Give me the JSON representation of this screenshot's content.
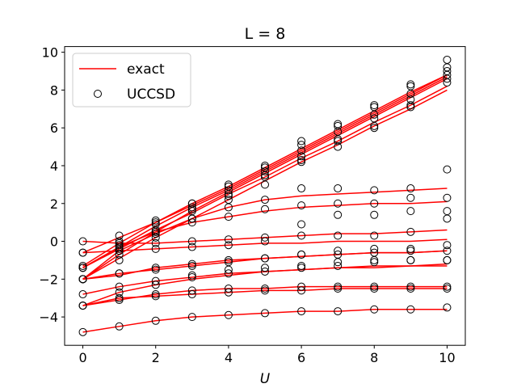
{
  "chart_data": {
    "type": "line",
    "title": "L = 8",
    "xlabel": "U",
    "ylabel": "",
    "xlim": [
      -0.5,
      10.5
    ],
    "ylim": [
      -5.5,
      10.3
    ],
    "xticks": [
      0,
      2,
      4,
      6,
      8,
      10
    ],
    "yticks": [
      -4,
      -2,
      0,
      2,
      4,
      6,
      8,
      10
    ],
    "grid": false,
    "legend_position": "top-left",
    "legend": [
      {
        "label": "exact",
        "style": "line",
        "color": "#ff0000"
      },
      {
        "label": "UCCSD",
        "style": "circle",
        "color": "#000000"
      }
    ],
    "x": [
      0,
      1,
      2,
      3,
      4,
      5,
      6,
      7,
      8,
      9,
      10
    ],
    "exact_series": [
      {
        "values": [
          -0.6,
          0.2,
          1.0,
          1.9,
          2.8,
          3.8,
          4.8,
          5.8,
          6.8,
          7.8,
          8.8
        ]
      },
      {
        "values": [
          -1.3,
          -0.1,
          1.0,
          2.0,
          2.9,
          3.9,
          4.9,
          5.9,
          6.9,
          7.9,
          8.8
        ]
      },
      {
        "values": [
          -1.4,
          -0.3,
          0.8,
          1.8,
          2.7,
          3.7,
          4.7,
          5.7,
          6.7,
          7.7,
          8.7
        ]
      },
      {
        "values": [
          -2.0,
          -0.7,
          0.5,
          1.6,
          2.6,
          3.6,
          4.6,
          5.6,
          6.6,
          7.6,
          8.6
        ]
      },
      {
        "values": [
          -1.4,
          -0.4,
          0.6,
          1.5,
          2.5,
          3.4,
          4.4,
          5.3,
          6.3,
          7.2,
          8.2
        ]
      },
      {
        "values": [
          -2.0,
          -0.9,
          0.2,
          1.2,
          2.2,
          3.2,
          4.2,
          5.1,
          6.1,
          7.0,
          8.0
        ]
      },
      {
        "values": [
          -1.4,
          -0.3,
          0.5,
          1.0,
          1.3,
          1.6,
          1.8,
          1.9,
          2.0,
          2.0,
          2.1
        ]
      },
      {
        "values": [
          -2.0,
          -0.5,
          0.4,
          1.2,
          1.8,
          2.2,
          2.4,
          2.5,
          2.6,
          2.7,
          2.8
        ]
      },
      {
        "values": [
          0.0,
          -0.1,
          -0.1,
          0.0,
          0.1,
          0.2,
          0.3,
          0.4,
          0.4,
          0.5,
          0.6
        ]
      },
      {
        "values": [
          -0.6,
          -0.5,
          -0.4,
          -0.3,
          -0.2,
          -0.1,
          -0.1,
          0.0,
          0.0,
          0.0,
          0.1
        ]
      },
      {
        "values": [
          -2.0,
          -1.8,
          -1.4,
          -1.2,
          -1.0,
          -0.9,
          -0.8,
          -0.7,
          -0.6,
          -0.6,
          -0.5
        ]
      },
      {
        "values": [
          -2.0,
          -1.7,
          -1.5,
          -1.3,
          -1.1,
          -0.9,
          -0.8,
          -0.7,
          -0.6,
          -0.6,
          -0.5
        ]
      },
      {
        "values": [
          -3.4,
          -2.7,
          -2.3,
          -2.0,
          -1.8,
          -1.6,
          -1.5,
          -1.4,
          -1.4,
          -1.3,
          -1.3
        ]
      },
      {
        "values": [
          -2.8,
          -2.4,
          -2.1,
          -1.9,
          -1.7,
          -1.6,
          -1.5,
          -1.4,
          -1.3,
          -1.3,
          -1.2
        ]
      },
      {
        "values": [
          -3.4,
          -3.1,
          -2.8,
          -2.6,
          -2.5,
          -2.5,
          -2.4,
          -2.4,
          -2.4,
          -2.4,
          -2.4
        ]
      },
      {
        "values": [
          -3.4,
          -3.0,
          -2.9,
          -2.8,
          -2.7,
          -2.6,
          -2.6,
          -2.5,
          -2.5,
          -2.5,
          -2.5
        ]
      },
      {
        "values": [
          -4.8,
          -4.5,
          -4.2,
          -4.0,
          -3.9,
          -3.8,
          -3.7,
          -3.7,
          -3.6,
          -3.6,
          -3.6
        ]
      }
    ],
    "uccsd_points": [
      {
        "values": [
          -0.6,
          0.3,
          1.1,
          2.0,
          2.9,
          4.0,
          5.1,
          6.1,
          7.1,
          8.3,
          9.2
        ]
      },
      {
        "values": [
          -1.3,
          0.0,
          1.0,
          2.0,
          3.0,
          3.9,
          5.3,
          6.2,
          7.2,
          8.2,
          9.6
        ]
      },
      {
        "values": [
          -1.4,
          -0.2,
          0.9,
          1.8,
          2.7,
          3.7,
          4.8,
          5.8,
          6.7,
          7.8,
          8.6
        ]
      },
      {
        "values": [
          -2.0,
          -0.7,
          0.5,
          1.6,
          2.5,
          3.5,
          4.5,
          5.3,
          6.5,
          7.5,
          8.4
        ]
      },
      {
        "values": [
          -1.4,
          -0.4,
          0.6,
          1.7,
          2.4,
          3.4,
          4.3,
          5.0,
          6.0,
          7.2,
          8.8
        ]
      },
      {
        "values": [
          -2.0,
          -1.0,
          0.2,
          1.2,
          2.2,
          3.0,
          4.2,
          5.4,
          6.1,
          7.1,
          9.0
        ]
      },
      {
        "values": [
          -1.4,
          -0.3,
          0.5,
          1.0,
          1.3,
          1.7,
          1.9,
          2.0,
          2.0,
          2.3,
          3.8
        ]
      },
      {
        "values": [
          -2.0,
          -0.5,
          0.4,
          1.2,
          1.8,
          2.2,
          2.8,
          2.8,
          2.7,
          2.8,
          2.3
        ]
      },
      {
        "values": [
          0.0,
          -0.1,
          -0.1,
          0.0,
          0.1,
          0.2,
          0.9,
          1.4,
          1.4,
          1.6,
          1.6
        ]
      },
      {
        "values": [
          -0.6,
          -0.5,
          -0.4,
          -0.3,
          -0.2,
          0.0,
          0.3,
          0.3,
          0.3,
          0.5,
          1.2
        ]
      },
      {
        "values": [
          -2.0,
          -1.7,
          -1.4,
          -1.2,
          -1.0,
          -0.9,
          -0.7,
          -0.5,
          -0.4,
          -0.4,
          -0.2
        ]
      },
      {
        "values": [
          -2.0,
          -1.7,
          -1.5,
          -1.3,
          -1.1,
          -0.9,
          -0.7,
          -0.7,
          -0.6,
          -0.5,
          -0.5
        ]
      },
      {
        "values": [
          -3.4,
          -2.7,
          -2.3,
          -1.9,
          -1.7,
          -1.6,
          -1.4,
          -1.1,
          -1.1,
          -1.0,
          -1.0
        ]
      },
      {
        "values": [
          -2.8,
          -2.4,
          -2.1,
          -1.8,
          -1.5,
          -1.4,
          -1.3,
          -1.3,
          -1.0,
          -1.0,
          -1.0
        ]
      },
      {
        "values": [
          -3.4,
          -3.1,
          -2.8,
          -2.6,
          -2.5,
          -2.5,
          -2.4,
          -2.4,
          -2.4,
          -2.4,
          -2.4
        ]
      },
      {
        "values": [
          -3.4,
          -3.0,
          -2.9,
          -2.8,
          -2.7,
          -2.6,
          -2.6,
          -2.5,
          -2.5,
          -2.5,
          -2.5
        ]
      },
      {
        "values": [
          -4.8,
          -4.5,
          -4.2,
          -4.0,
          -3.9,
          -3.8,
          -3.7,
          -3.7,
          -3.6,
          -3.6,
          -3.5
        ]
      }
    ]
  }
}
